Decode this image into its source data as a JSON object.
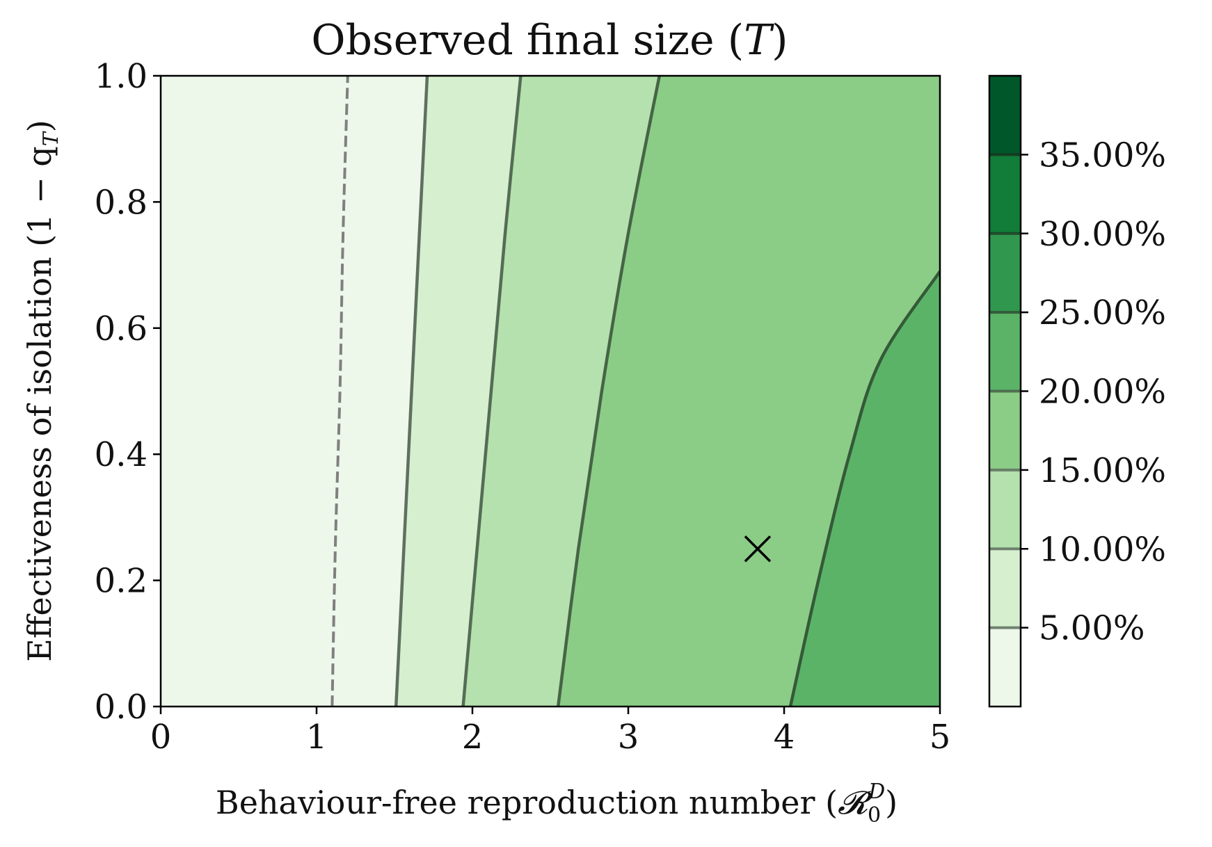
{
  "chart_data": {
    "type": "contour",
    "title": "Observed final size",
    "title_symbol": "T",
    "xlabel": "Behaviour-free reproduction number",
    "xlabel_symbol": "𝓡",
    "xlabel_sub": "0",
    "xlabel_sup": "D",
    "ylabel": "Effectiveness of isolation",
    "ylabel_expr": "1 − q",
    "ylabel_sub": "T",
    "xlim": [
      0,
      5
    ],
    "ylim": [
      0,
      1
    ],
    "x_ticks": [
      0,
      1,
      2,
      3,
      4,
      5
    ],
    "x_tick_labels": [
      "0",
      "1",
      "2",
      "3",
      "4",
      "5"
    ],
    "y_ticks": [
      0.0,
      0.2,
      0.4,
      0.6,
      0.8,
      1.0
    ],
    "y_tick_labels": [
      "0.0",
      "0.2",
      "0.4",
      "0.6",
      "0.8",
      "1.0"
    ],
    "levels": [
      0,
      0.05,
      0.1,
      0.15,
      0.2,
      0.25,
      0.3,
      0.35,
      0.4
    ],
    "level_colors": [
      "#edf7ea",
      "#d5efcf",
      "#b4e1ad",
      "#8bcd87",
      "#5bb368",
      "#2f974e",
      "#127c39",
      "#00582a"
    ],
    "colorbar_ticks": [
      0.05,
      0.1,
      0.15,
      0.2,
      0.25,
      0.3,
      0.35
    ],
    "colorbar_tick_labels": [
      "5.00%",
      "10.00%",
      "15.00%",
      "20.00%",
      "25.00%",
      "30.00%",
      "35.00%"
    ],
    "contour_lines": [
      {
        "level": 0.05,
        "points": [
          [
            1.51,
            0.0
          ],
          [
            1.56,
            0.25
          ],
          [
            1.61,
            0.5
          ],
          [
            1.66,
            0.75
          ],
          [
            1.71,
            1.0
          ]
        ]
      },
      {
        "level": 0.1,
        "points": [
          [
            1.94,
            0.0
          ],
          [
            2.03,
            0.25
          ],
          [
            2.12,
            0.5
          ],
          [
            2.21,
            0.75
          ],
          [
            2.31,
            1.0
          ]
        ]
      },
      {
        "level": 0.15,
        "points": [
          [
            2.55,
            0.0
          ],
          [
            2.68,
            0.25
          ],
          [
            2.83,
            0.5
          ],
          [
            3.0,
            0.75
          ],
          [
            3.2,
            1.0
          ]
        ]
      },
      {
        "level": 0.2,
        "points": [
          [
            4.04,
            0.0
          ],
          [
            4.22,
            0.2
          ],
          [
            4.42,
            0.4
          ],
          [
            4.62,
            0.55
          ],
          [
            5.0,
            0.69
          ]
        ]
      }
    ],
    "threshold_line": {
      "style": "dashed",
      "points": [
        [
          1.1,
          0.0
        ],
        [
          1.12,
          0.25
        ],
        [
          1.15,
          0.5
        ],
        [
          1.17,
          0.75
        ],
        [
          1.2,
          1.0
        ]
      ]
    },
    "marker": {
      "symbol": "x",
      "x": 3.83,
      "y": 0.25
    }
  }
}
